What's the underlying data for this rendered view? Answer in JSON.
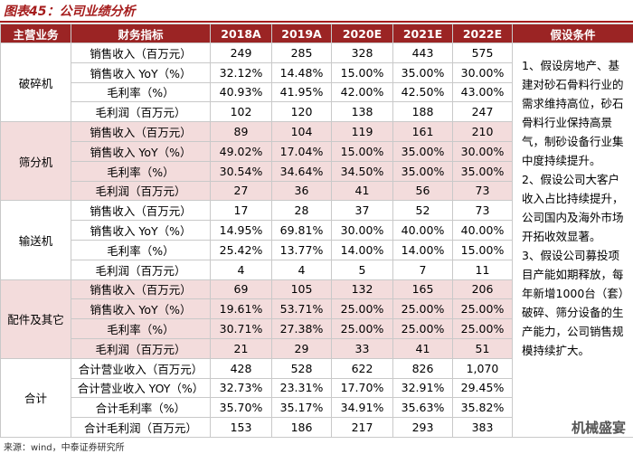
{
  "title": "图表45：公司业绩分析",
  "table": {
    "header": [
      "主营业务",
      "财务指标",
      "2018A",
      "2019A",
      "2020E",
      "2021E",
      "2022E",
      "假设条件"
    ],
    "groups": [
      {
        "name": "破碎机",
        "rows": [
          [
            "销售收入（百万元）",
            "249",
            "285",
            "328",
            "443",
            "575"
          ],
          [
            "销售收入 YoY（%）",
            "32.12%",
            "14.48%",
            "15.00%",
            "35.00%",
            "30.00%"
          ],
          [
            "毛利率（%）",
            "40.93%",
            "41.95%",
            "42.00%",
            "42.50%",
            "43.00%"
          ],
          [
            "毛利润（百万元）",
            "102",
            "120",
            "138",
            "188",
            "247"
          ]
        ]
      },
      {
        "name": "筛分机",
        "rows": [
          [
            "销售收入（百万元）",
            "89",
            "104",
            "119",
            "161",
            "210"
          ],
          [
            "销售收入 YoY（%）",
            "49.02%",
            "17.04%",
            "15.00%",
            "35.00%",
            "30.00%"
          ],
          [
            "毛利率（%）",
            "30.54%",
            "34.64%",
            "34.50%",
            "35.00%",
            "35.00%"
          ],
          [
            "毛利润（百万元）",
            "27",
            "36",
            "41",
            "56",
            "73"
          ]
        ]
      },
      {
        "name": "输送机",
        "rows": [
          [
            "销售收入（百万元）",
            "17",
            "28",
            "37",
            "52",
            "73"
          ],
          [
            "销售收入 YoY（%）",
            "14.95%",
            "69.81%",
            "30.00%",
            "40.00%",
            "40.00%"
          ],
          [
            "毛利率（%）",
            "25.42%",
            "13.77%",
            "14.00%",
            "14.00%",
            "15.00%"
          ],
          [
            "毛利润（百万元）",
            "4",
            "4",
            "5",
            "7",
            "11"
          ]
        ]
      },
      {
        "name": "配件及其它",
        "rows": [
          [
            "销售收入（百万元）",
            "69",
            "105",
            "132",
            "165",
            "206"
          ],
          [
            "销售收入 YoY（%）",
            "19.61%",
            "53.71%",
            "25.00%",
            "25.00%",
            "25.00%"
          ],
          [
            "毛利率（%）",
            "30.71%",
            "27.38%",
            "25.00%",
            "25.00%",
            "25.00%"
          ],
          [
            "毛利润（百万元）",
            "21",
            "29",
            "33",
            "41",
            "51"
          ]
        ]
      },
      {
        "name": "合计",
        "rows": [
          [
            "合计营业收入（百万元）",
            "428",
            "528",
            "622",
            "826",
            "1,070"
          ],
          [
            "合计营业收入 YOY（%）",
            "32.73%",
            "23.31%",
            "17.70%",
            "32.91%",
            "29.45%"
          ],
          [
            "合计毛利率（%）",
            "35.70%",
            "35.17%",
            "34.91%",
            "35.63%",
            "35.82%"
          ],
          [
            "合计毛利润（百万元）",
            "153",
            "186",
            "217",
            "293",
            "383"
          ]
        ]
      }
    ],
    "assumptions": [
      "1、假设房地产、基建对砂石骨料行业的需求维持高位，砂石骨料行业保持高景气，制砂设备行业集中度持续提升。",
      "2、假设公司大客户收入占比持续提升，公司国内及海外市场开拓收效显著。",
      "3、假设公司募投项目产能如期释放，每年新增1000台（套）破碎、筛分设备的生产能力，公司销售规模持续扩大。"
    ]
  },
  "source": "来源：wind，中泰证券研究所",
  "watermark": "机械盛宴"
}
